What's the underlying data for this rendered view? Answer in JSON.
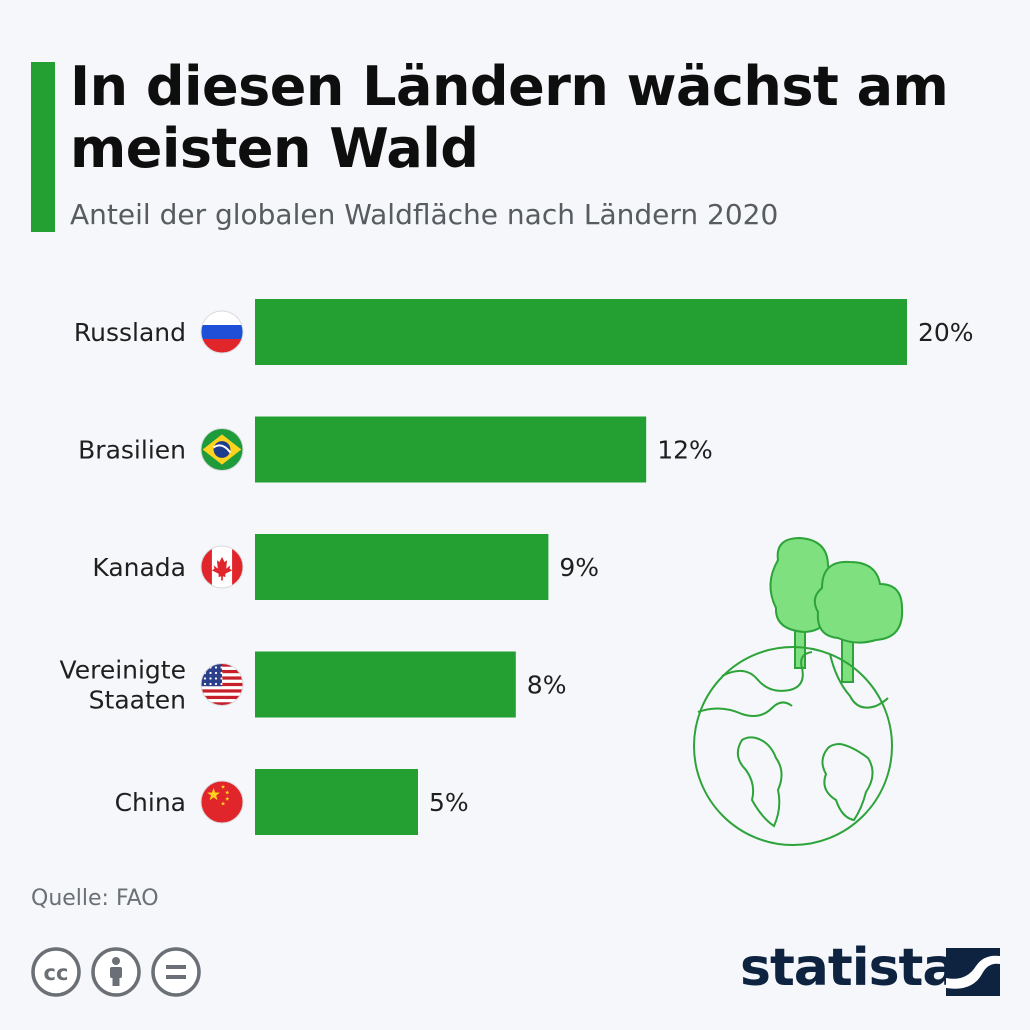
{
  "header": {
    "title": "In diesen Ländern wächst am meisten Wald",
    "subtitle": "Anteil der globalen Waldfläche nach Ländern 2020"
  },
  "chart_data": {
    "type": "bar",
    "orientation": "horizontal",
    "title": "In diesen Ländern wächst am meisten Wald",
    "subtitle": "Anteil der globalen Waldfläche nach Ländern 2020",
    "categories": [
      {
        "label": [
          "Russland"
        ],
        "flag": "russia-flag-icon"
      },
      {
        "label": [
          "Brasilien"
        ],
        "flag": "brazil-flag-icon"
      },
      {
        "label": [
          "Kanada"
        ],
        "flag": "canada-flag-icon"
      },
      {
        "label": [
          "Vereinigte",
          "Staaten"
        ],
        "flag": "usa-flag-icon"
      },
      {
        "label": [
          "China"
        ],
        "flag": "china-flag-icon"
      }
    ],
    "values": [
      20,
      12,
      9,
      8,
      5
    ],
    "value_labels": [
      "20%",
      "12%",
      "9%",
      "8%",
      "5%"
    ],
    "unit": "%",
    "xlim": [
      0,
      20
    ],
    "bar_color": "#24a032",
    "grid": false,
    "legend": "none"
  },
  "footer": {
    "source": "Quelle: FAO",
    "license_icons": [
      "cc-icon",
      "attribution-icon",
      "no-derivatives-icon"
    ],
    "brand": "statista"
  },
  "colors": {
    "accent": "#24a032",
    "brand": "#0d2340",
    "illustration_green": "#7fe07f"
  }
}
